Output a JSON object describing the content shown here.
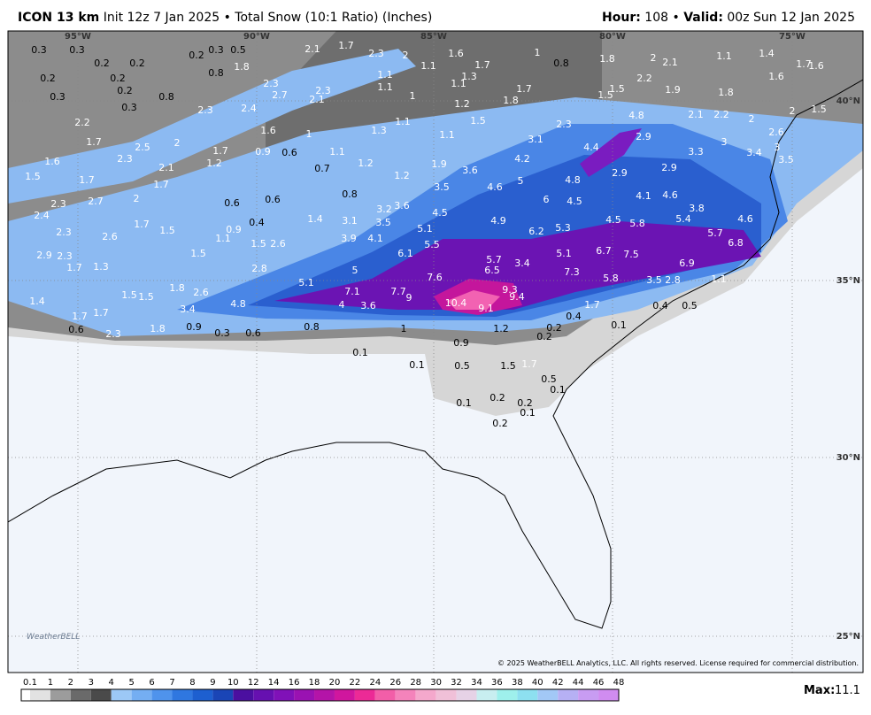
{
  "header": {
    "model": "ICON 13 km",
    "description": "Init 12z 7 Jan 2025 • Total Snow (10:1 Ratio) (Inches)",
    "hour_label": "Hour:",
    "hour": 108,
    "separator": "•",
    "valid_label": "Valid:",
    "valid": "00z Sun 12 Jan 2025"
  },
  "map": {
    "longitudes": [
      "95°W",
      "90°W",
      "85°W",
      "80°W",
      "75°W"
    ],
    "latitudes": [
      "40°N",
      "35°N",
      "30°N",
      "25°N"
    ],
    "snow_totals": [
      0.3,
      0.3,
      0.2,
      0.2,
      0.2,
      0.2,
      0.2,
      0.3,
      0.3,
      0.8,
      0.2,
      0.3,
      0.5,
      1.8,
      0.8,
      2.1,
      1.7,
      2.3,
      2.0,
      1.6,
      1.1,
      1.7,
      1.3,
      1.0,
      0.8,
      1.8,
      2.0,
      2.1,
      1.1,
      1.4,
      1.7,
      1.6,
      1.1,
      1.1,
      1.0,
      1.1,
      1.2,
      1.8,
      1.7,
      1.5,
      2.2,
      1.9,
      1.5,
      1.5,
      1.8,
      1.6,
      2.3,
      2.3,
      2.7,
      2.1,
      2.4,
      2.3,
      1.6,
      1.0,
      1.3,
      1.1,
      1.1,
      2.2,
      1.7,
      2.5,
      2.0,
      1.6,
      2.3,
      2.1,
      1.7,
      1.2,
      0.9,
      0.6,
      1.1,
      1.2,
      0.7,
      1.2,
      1.9,
      1.5,
      1.7,
      1.7,
      2.3,
      2.7,
      2.0,
      0.6,
      0.8,
      2.4,
      2.3,
      2.6,
      1.7,
      1.5,
      1.1,
      0.9,
      0.4,
      0.6,
      1.5,
      2.6,
      1.4,
      3.1,
      3.5,
      3.2,
      3.6,
      3.9,
      4.1,
      2.9,
      2.3,
      1.7,
      1.3,
      1.5,
      2.8,
      1.5,
      1.5,
      1.8,
      2.6,
      1.4,
      3.4,
      4.8,
      1.7,
      1.7,
      0.6,
      2.3,
      1.8,
      0.9,
      0.3,
      0.6,
      0.8,
      0.1,
      1.0,
      4.0,
      3.6,
      5.1,
      7.1,
      5.0,
      7.7,
      9.0,
      7.6,
      6.1,
      5.5,
      5.1,
      4.5,
      3.5,
      3.6,
      4.6,
      5.0,
      4.2,
      4.9,
      10.4,
      9.1,
      6.5,
      5.7,
      3.4,
      9.3,
      9.4,
      6.2,
      5.3,
      6.0,
      4.8,
      4.5,
      4.5,
      5.1,
      7.3,
      6.7,
      7.5,
      5.8,
      3.5,
      2.8,
      6.9,
      5.8,
      5.4,
      4.1,
      4.6,
      5.7,
      6.8,
      3.8,
      4.6,
      4.4,
      2.9,
      2.9,
      4.8,
      2.9,
      3.3,
      3.0,
      2.3,
      3.1,
      1.7,
      0.4,
      0.2,
      0.2,
      0.4,
      0.5,
      0.1,
      1.2,
      0.9,
      0.5,
      1.5,
      1.7,
      0.1,
      0.5,
      0.1,
      0.1,
      0.2,
      0.2,
      0.1,
      0.2,
      2.1,
      2.2,
      2.0,
      2.0,
      1.5,
      3.4,
      3.0,
      2.6,
      3.5,
      1.1
    ],
    "copyright": "© 2025 WeatherBELL Analytics, LLC. All rights reserved. License required for commercial distribution.",
    "logo": "WeatherBELL"
  },
  "legend": {
    "ticks": [
      0.1,
      1,
      2,
      3,
      4,
      5,
      6,
      7,
      8,
      9,
      10,
      12,
      14,
      16,
      18,
      20,
      22,
      24,
      26,
      28,
      30,
      32,
      34,
      36,
      38,
      40,
      42,
      44,
      46,
      48
    ],
    "max_label": "Max:",
    "max": 11.1
  }
}
